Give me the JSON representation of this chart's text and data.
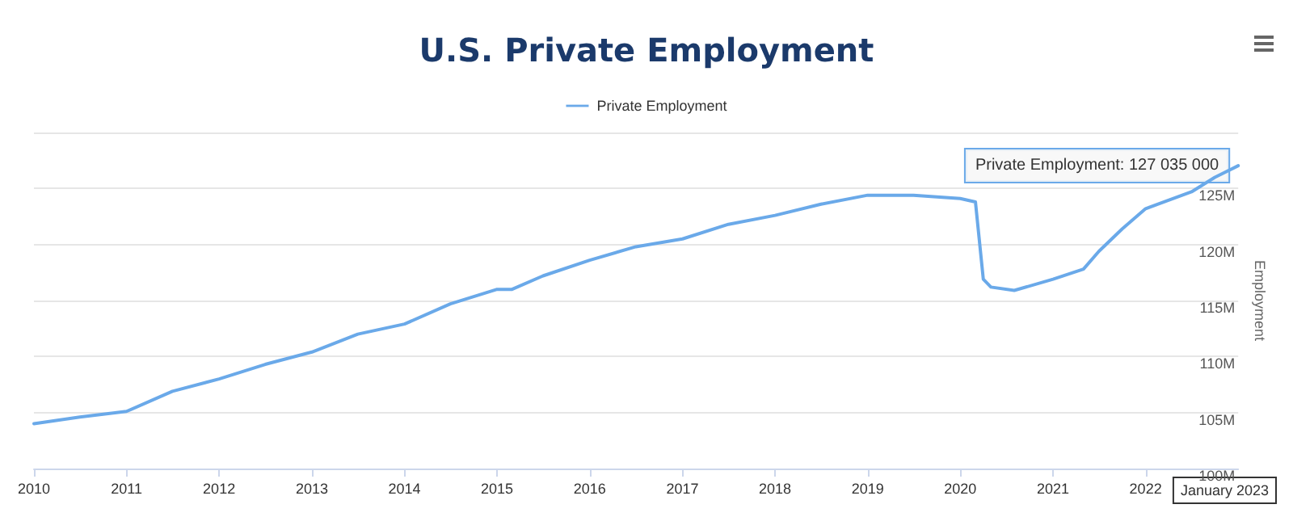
{
  "chart_data": {
    "type": "line",
    "title": "U.S. Private Employment",
    "ylabel": "Employment",
    "x": [
      "2010-01",
      "2010-07",
      "2011-01",
      "2011-07",
      "2012-01",
      "2012-07",
      "2013-01",
      "2013-07",
      "2014-01",
      "2014-07",
      "2015-01",
      "2015-03",
      "2015-07",
      "2016-01",
      "2016-07",
      "2017-01",
      "2017-07",
      "2018-01",
      "2018-07",
      "2019-01",
      "2019-07",
      "2020-01",
      "2020-03",
      "2020-04",
      "2020-05",
      "2020-08",
      "2021-01",
      "2021-05",
      "2021-07",
      "2021-10",
      "2022-01",
      "2022-07",
      "2022-10",
      "2023-01"
    ],
    "series": [
      {
        "name": "Private Employment",
        "color": "#6aa9e9",
        "values": [
          104.0,
          104.6,
          105.1,
          106.9,
          108.0,
          109.3,
          110.4,
          112.0,
          112.9,
          114.7,
          116.0,
          116.0,
          117.2,
          118.6,
          119.8,
          120.5,
          121.8,
          122.6,
          123.6,
          124.4,
          124.4,
          124.1,
          123.8,
          116.9,
          116.2,
          115.9,
          116.9,
          117.8,
          119.4,
          121.4,
          123.2,
          124.7,
          126.0,
          127.035
        ]
      }
    ],
    "xlim": [
      "2010-01",
      "2023-01"
    ],
    "xticks": [
      {
        "value": "2010",
        "label": "2010"
      },
      {
        "value": "2011",
        "label": "2011"
      },
      {
        "value": "2012",
        "label": "2012"
      },
      {
        "value": "2013",
        "label": "2013"
      },
      {
        "value": "2014",
        "label": "2014"
      },
      {
        "value": "2015",
        "label": "2015"
      },
      {
        "value": "2016",
        "label": "2016"
      },
      {
        "value": "2017",
        "label": "2017"
      },
      {
        "value": "2018",
        "label": "2018"
      },
      {
        "value": "2019",
        "label": "2019"
      },
      {
        "value": "2020",
        "label": "2020"
      },
      {
        "value": "2021",
        "label": "2021"
      },
      {
        "value": "2022",
        "label": "2022"
      }
    ],
    "ylim": [
      100,
      130
    ],
    "yticks": [
      {
        "value": 100,
        "label": "100M"
      },
      {
        "value": 105,
        "label": "105M"
      },
      {
        "value": 110,
        "label": "110M"
      },
      {
        "value": 115,
        "label": "115M"
      },
      {
        "value": 120,
        "label": "120M"
      },
      {
        "value": 125,
        "label": "125M"
      },
      {
        "value": 130,
        "label": null
      }
    ],
    "annotations": [
      {
        "text": "Private Employment: 127 035 000",
        "x": "2023-01",
        "y": 127.035
      },
      "January 2023"
    ],
    "grid": "y",
    "legend": "top",
    "marker": "none",
    "line_style": "solid"
  }
}
